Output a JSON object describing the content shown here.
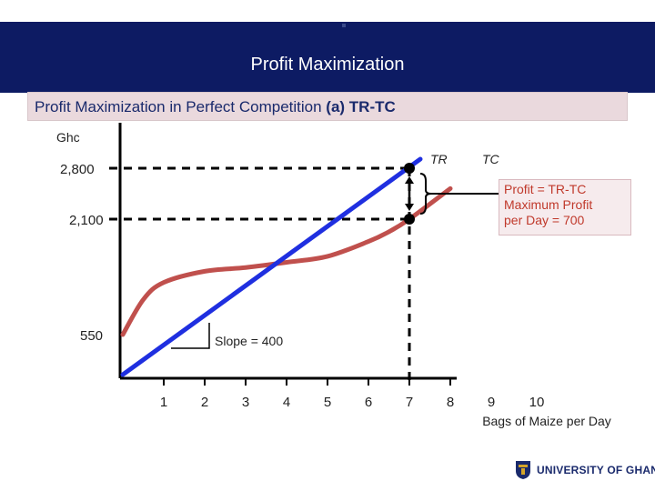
{
  "header": {
    "title": "Profit Maximization"
  },
  "subtitle": {
    "prefix": "Profit Maximization in Perfect Competition ",
    "bold": "(a) TR-TC"
  },
  "profit_box": {
    "line1": "Profit = TR-TC",
    "line2": "Maximum Profit",
    "line3": "per Day = 700"
  },
  "slope_label": "Slope = 400",
  "footer": {
    "logo_text": "UNIVERSITY OF GHANA"
  },
  "colors": {
    "header_bg": "#0d1b63",
    "tr": "#1f2fe0",
    "tc": "#c0504d",
    "profit_text": "#c0392b"
  },
  "chart_data": {
    "type": "line",
    "ylabel": "Ghc",
    "xlabel": "Bags of Maize per Day",
    "x_ticks": [
      "1",
      "2",
      "3",
      "4",
      "5",
      "6",
      "7",
      "8",
      "9",
      "10"
    ],
    "y_ticks": [
      {
        "value": 550,
        "label": "550"
      },
      {
        "value": 2100,
        "label": "2,100"
      },
      {
        "value": 2800,
        "label": "2,800"
      }
    ],
    "series": [
      {
        "name": "TR",
        "x": [
          0,
          7
        ],
        "y": [
          0,
          2800
        ]
      },
      {
        "name": "TC",
        "x": [
          0,
          0.5,
          1,
          2,
          3,
          4,
          5,
          6,
          6.5,
          7,
          8
        ],
        "y": [
          550,
          1020,
          1250,
          1400,
          1450,
          1520,
          1600,
          1800,
          1930,
          2100,
          2520
        ]
      }
    ],
    "markers": [
      {
        "x": 7,
        "y": 2800
      },
      {
        "x": 7,
        "y": 2100
      }
    ],
    "annotations": {
      "max_profit_q": 7,
      "profit": 700,
      "slope": 400
    }
  }
}
